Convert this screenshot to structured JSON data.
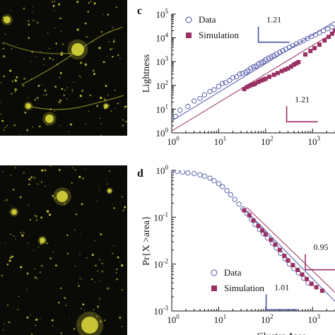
{
  "chart_data": [
    {
      "panel": "c",
      "type": "scatter",
      "xlabel": "",
      "ylabel": "Lightness",
      "xscale": "log",
      "yscale": "log",
      "xlim": [
        1,
        3000
      ],
      "ylim": [
        1,
        100000
      ],
      "xticks": [
        1,
        10,
        100,
        1000
      ],
      "xtick_labels": [
        [
          "10",
          "0"
        ],
        [
          "10",
          "1"
        ],
        [
          "10",
          "2"
        ],
        [
          "10",
          "3"
        ]
      ],
      "yticks": [
        1,
        10,
        100,
        1000,
        10000,
        100000
      ],
      "ytick_labels": [
        [
          "10",
          "0"
        ],
        [
          "10",
          "1"
        ],
        [
          "10",
          "2"
        ],
        [
          "10",
          "3"
        ],
        [
          "10",
          "4"
        ],
        [
          "10",
          "5"
        ]
      ],
      "legend": {
        "placement": "top-left",
        "entries": [
          "Data",
          "Simulation"
        ]
      },
      "series": [
        {
          "name": "Data",
          "marker": "open-circle",
          "color": "#4b52a8",
          "points": [
            [
              1.2,
              5
            ],
            [
              1.5,
              9
            ],
            [
              2.2,
              13
            ],
            [
              3,
              22
            ],
            [
              4,
              28
            ],
            [
              5,
              40
            ],
            [
              6.5,
              55
            ],
            [
              8,
              65
            ],
            [
              10,
              90
            ],
            [
              12,
              120
            ],
            [
              14,
              130
            ],
            [
              17,
              160
            ],
            [
              20,
              210
            ],
            [
              24,
              230
            ],
            [
              28,
              300
            ],
            [
              32,
              320
            ],
            [
              38,
              360
            ],
            [
              42,
              420
            ],
            [
              48,
              520
            ],
            [
              55,
              600
            ],
            [
              62,
              650
            ],
            [
              70,
              800
            ],
            [
              80,
              900
            ],
            [
              90,
              1000
            ],
            [
              100,
              1200
            ],
            [
              115,
              1400
            ],
            [
              130,
              1600
            ],
            [
              150,
              1800
            ],
            [
              170,
              2100
            ],
            [
              200,
              2500
            ],
            [
              230,
              2900
            ],
            [
              270,
              3400
            ],
            [
              320,
              4000
            ],
            [
              380,
              4800
            ],
            [
              450,
              5600
            ],
            [
              540,
              6600
            ],
            [
              650,
              7800
            ],
            [
              780,
              9500
            ],
            [
              950,
              11500
            ],
            [
              1150,
              13500
            ],
            [
              1400,
              16500
            ],
            [
              1700,
              20000
            ],
            [
              2100,
              24000
            ],
            [
              2600,
              28000
            ]
          ]
        },
        {
          "name": "Simulation",
          "marker": "filled-square",
          "color": "#9a2f62",
          "points": [
            [
              35,
              70
            ],
            [
              40,
              85
            ],
            [
              45,
              95
            ],
            [
              50,
              105
            ],
            [
              55,
              110
            ],
            [
              60,
              120
            ],
            [
              70,
              140
            ],
            [
              80,
              160
            ],
            [
              90,
              175
            ],
            [
              100,
              190
            ],
            [
              120,
              230
            ],
            [
              150,
              280
            ],
            [
              180,
              330
            ],
            [
              220,
              400
            ],
            [
              260,
              460
            ],
            [
              300,
              520
            ],
            [
              350,
              620
            ],
            [
              400,
              750
            ],
            [
              450,
              850
            ],
            [
              500,
              950
            ],
            [
              700,
              2000
            ],
            [
              900,
              2800
            ],
            [
              1100,
              3700
            ],
            [
              1400,
              5200
            ],
            [
              1800,
              7800
            ],
            [
              2200,
              11000
            ],
            [
              2600,
              15000
            ],
            [
              3000,
              20000
            ]
          ]
        }
      ],
      "fit_lines": [
        {
          "color": "#4b52a8",
          "from": [
            1,
            3.2
          ],
          "to": [
            3000,
            50000
          ]
        },
        {
          "color": "#9a2f62",
          "from": [
            1,
            1.2
          ],
          "to": [
            3000,
            18000
          ]
        }
      ],
      "annotations": [
        {
          "text": "1.21",
          "color": "#4b52a8",
          "x": 150,
          "y": 45000
        },
        {
          "text": "1.21",
          "color": "#9a2f62",
          "x": 600,
          "y": 20
        }
      ]
    },
    {
      "panel": "d",
      "type": "scatter",
      "xlabel": "Cluster Area",
      "ylabel": "Pr{X >area}",
      "xscale": "log",
      "yscale": "log",
      "xlim": [
        1,
        3000
      ],
      "ylim": [
        0.001,
        1
      ],
      "xticks": [
        1,
        10,
        100,
        1000
      ],
      "xtick_labels": [
        [
          "10",
          "0"
        ],
        [
          "10",
          "1"
        ],
        [
          "10",
          "2"
        ],
        [
          "10",
          "3"
        ]
      ],
      "yticks": [
        0.001,
        0.01,
        0.1,
        1
      ],
      "ytick_labels": [
        [
          "10",
          "-3"
        ],
        [
          "10",
          "-2"
        ],
        [
          "10",
          "-1"
        ],
        [
          "10",
          "0"
        ]
      ],
      "legend": {
        "placement": "bottom-center",
        "entries": [
          "Data",
          "Simulation"
        ]
      },
      "series": [
        {
          "name": "Data",
          "marker": "open-circle",
          "color": "#4b52a8",
          "points": [
            [
              1,
              1
            ],
            [
              1.3,
              0.95
            ],
            [
              1.7,
              0.92
            ],
            [
              2.2,
              0.88
            ],
            [
              3,
              0.85
            ],
            [
              4,
              0.8
            ],
            [
              5,
              0.75
            ],
            [
              6.5,
              0.68
            ],
            [
              8,
              0.6
            ],
            [
              10,
              0.52
            ],
            [
              12,
              0.45
            ],
            [
              15,
              0.37
            ],
            [
              18,
              0.3
            ],
            [
              22,
              0.24
            ],
            [
              27,
              0.19
            ],
            [
              33,
              0.15
            ],
            [
              40,
              0.12
            ],
            [
              50,
              0.09
            ],
            [
              60,
              0.07
            ],
            [
              75,
              0.055
            ],
            [
              90,
              0.045
            ],
            [
              110,
              0.036
            ],
            [
              140,
              0.028
            ],
            [
              170,
              0.022
            ],
            [
              210,
              0.017
            ],
            [
              260,
              0.013
            ],
            [
              320,
              0.01
            ],
            [
              400,
              0.008
            ],
            [
              500,
              0.0065
            ],
            [
              650,
              0.005
            ],
            [
              800,
              0.004
            ]
          ]
        },
        {
          "name": "Simulation",
          "marker": "filled-square",
          "color": "#9a2f62",
          "points": [
            [
              35,
              0.14
            ],
            [
              45,
              0.11
            ],
            [
              55,
              0.085
            ],
            [
              70,
              0.065
            ],
            [
              85,
              0.052
            ],
            [
              100,
              0.043
            ],
            [
              130,
              0.033
            ],
            [
              160,
              0.026
            ],
            [
              200,
              0.02
            ],
            [
              250,
              0.015
            ],
            [
              300,
              0.012
            ],
            [
              380,
              0.0095
            ],
            [
              480,
              0.0075
            ],
            [
              600,
              0.006
            ],
            [
              750,
              0.0048
            ],
            [
              950,
              0.0038
            ],
            [
              1200,
              0.0032
            ],
            [
              1600,
              0.0027
            ]
          ]
        }
      ],
      "fit_lines": [
        {
          "color": "#4b52a8",
          "from": [
            40,
            0.13
          ],
          "to": [
            3000,
            0.0016
          ]
        },
        {
          "color": "#9a2f62",
          "from": [
            40,
            0.16
          ],
          "to": [
            3000,
            0.0025
          ]
        }
      ],
      "annotations": [
        {
          "text": "0.95",
          "color": "#9a2f62",
          "x": 1500,
          "y": 0.02
        },
        {
          "text": "1.01",
          "color": "#4b52a8",
          "x": 220,
          "y": 0.0028
        }
      ]
    }
  ],
  "images": [
    {
      "name": "city-lights-image",
      "background": "#0a0a06",
      "dot_color": "#d9d83a"
    },
    {
      "name": "simulation-lights-image",
      "background": "#0a0a06",
      "dot_color": "#d6d43a"
    }
  ]
}
